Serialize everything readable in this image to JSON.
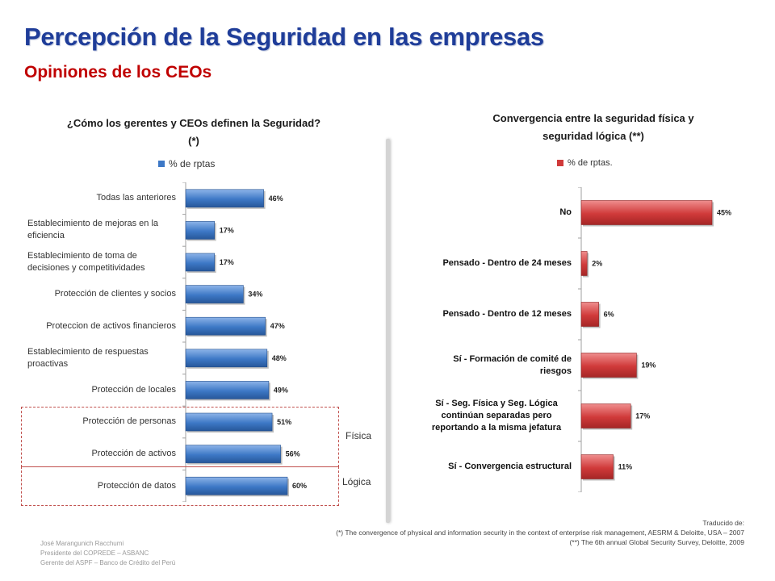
{
  "slide": {
    "title": "Percepción de la Seguridad en las empresas",
    "subtitle": "Opiniones de los CEOs",
    "fisica_label": "Física",
    "logica_label": "Lógica"
  },
  "footer": {
    "author": "José Marangunich Racchumi",
    "role1": "Presidente del COPREDE – ASBANC",
    "role2": "Gerente del ASPF – Banco de Crédito del Perú",
    "translated": "Traducido de:",
    "source1": "(*) The convergence of physical and information security in the context of enterprise risk management, AESRM & Deloitte, USA – 2007",
    "source2": "(**) The 6th annual Global Security Survey, Deloitte, 2009"
  },
  "colors": {
    "title": "#1f3d99",
    "subtitle": "#c00000",
    "blue_bar": "#3d78c6",
    "red_bar": "#d03a3a",
    "dashed_box": "#c0504d"
  },
  "chart_data": [
    {
      "type": "bar",
      "orientation": "horizontal",
      "title": "¿Cómo los gerentes y CEOs definen la Seguridad? (*)",
      "title_line1": "¿Cómo los gerentes y CEOs definen la Seguridad?",
      "title_line2": "(*)",
      "legend": "% de rptas",
      "xlim": [
        0,
        100
      ],
      "unit": "%",
      "categories": [
        "Todas las anteriores",
        "Establecimiento de mejoras en la eficiencia",
        "Establecimiento de toma de decisiones y competitividades",
        "Protección de clientes y socios",
        "Proteccion de activos financieros",
        "Establecimiento de respuestas proactivas",
        "Protección de locales",
        "Protección de personas",
        "Protección de activos",
        "Protección de datos"
      ],
      "values": [
        46,
        17,
        17,
        34,
        47,
        48,
        49,
        51,
        56,
        60
      ],
      "value_labels": [
        "46%",
        "17%",
        "17%",
        "34%",
        "47%",
        "48%",
        "49%",
        "51%",
        "56%",
        "60%"
      ]
    },
    {
      "type": "bar",
      "orientation": "horizontal",
      "title": "Convergencia entre la seguridad física y seguridad lógica (**)",
      "title_line1": "Convergencia entre la seguridad física y",
      "title_line2": "seguridad lógica (**)",
      "legend": "% de rptas.",
      "xlim": [
        0,
        100
      ],
      "unit": "%",
      "categories": [
        "No",
        "Pensado - Dentro de 24 meses",
        "Pensado - Dentro de 12 meses",
        "Sí - Formación de comité de riesgos",
        "Sí - Seg. Física y Seg. Lógica continúan separadas pero reportando a la misma jefatura",
        "Sí - Convergencia estructural"
      ],
      "values": [
        45,
        2,
        6,
        19,
        17,
        11
      ],
      "value_labels": [
        "45%",
        "2%",
        "6%",
        "19%",
        "17%",
        "11%"
      ]
    }
  ]
}
